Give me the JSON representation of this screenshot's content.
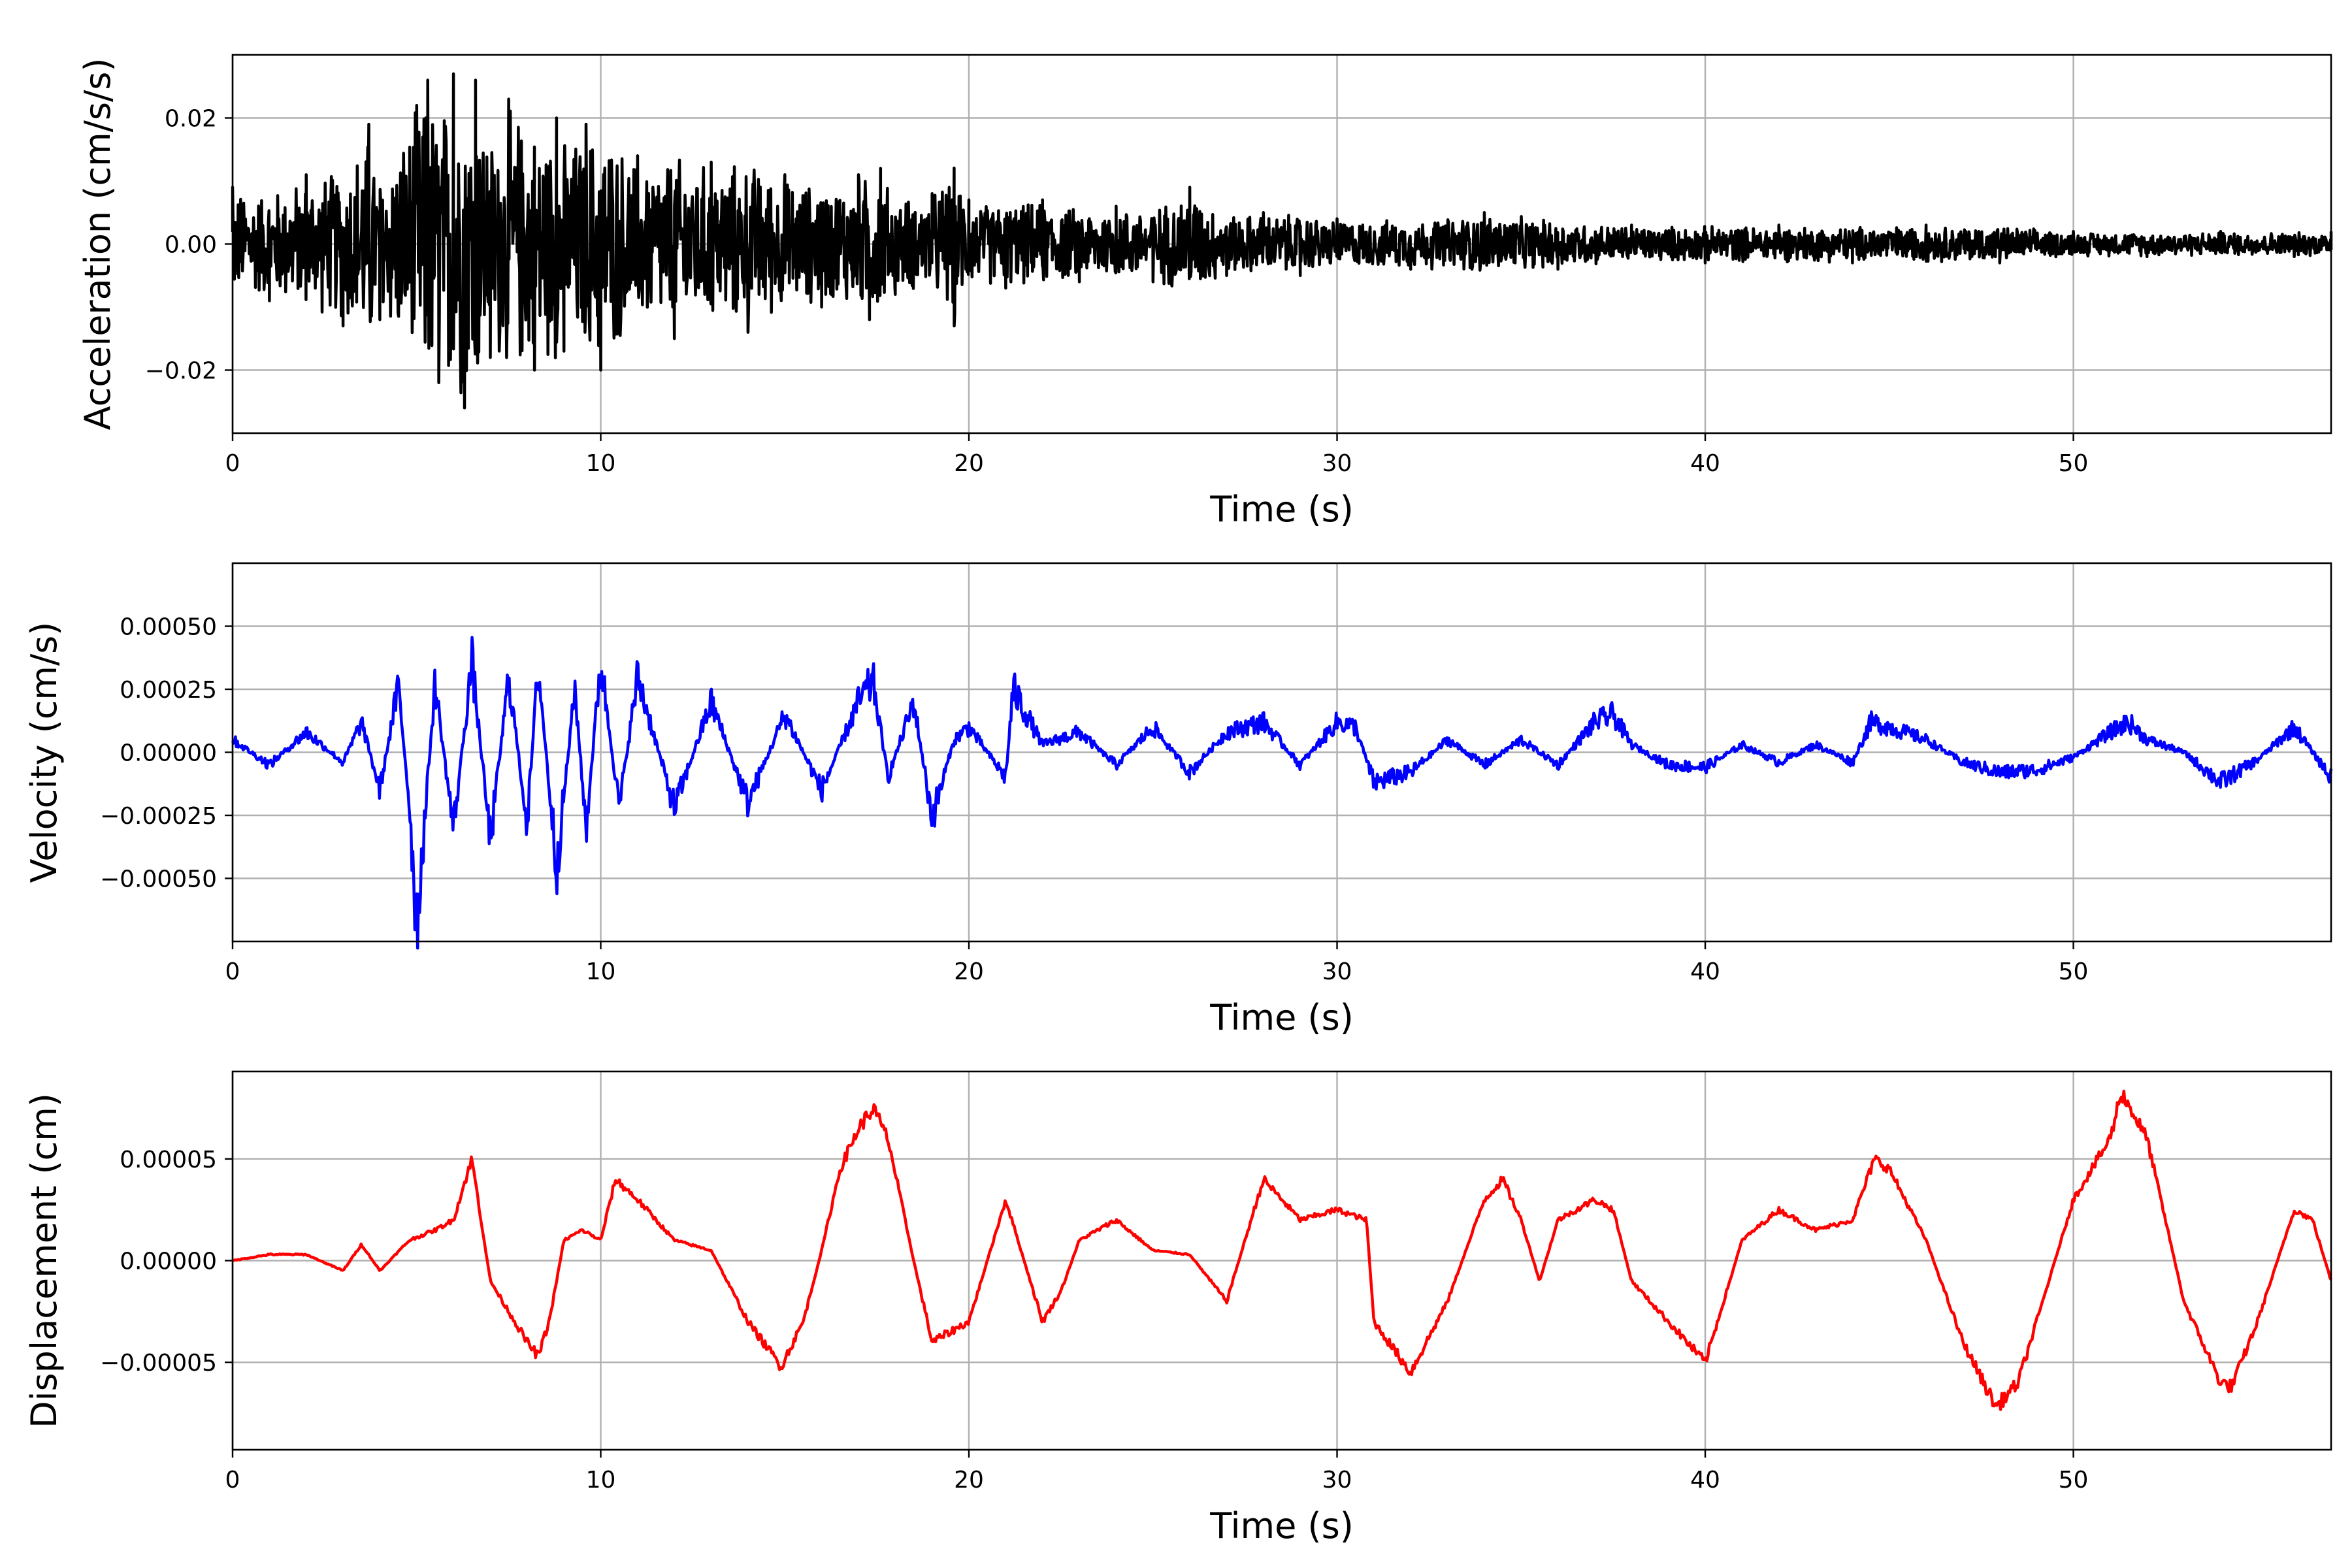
{
  "chart_data": [
    {
      "type": "line",
      "id": "acceleration",
      "xlabel": "Time (s)",
      "ylabel": "Acceleration (cm/s/s)",
      "xlim": [
        0,
        57
      ],
      "ylim": [
        -0.03,
        0.03
      ],
      "xticks": [
        0,
        10,
        20,
        30,
        40,
        50
      ],
      "xtick_labels": [
        "0",
        "10",
        "20",
        "30",
        "40",
        "50"
      ],
      "yticks": [
        -0.02,
        0.0,
        0.02
      ],
      "ytick_labels": [
        "−0.02",
        "0.00",
        "0.02"
      ],
      "grid": true,
      "color": "#000000",
      "series": [
        {
          "x": [
            0,
            1,
            2,
            3,
            3.7,
            4,
            5,
            5.3,
            5.6,
            6,
            6.3,
            6.6,
            7,
            7.5,
            8.2,
            8.8,
            9,
            9.6,
            10,
            11,
            12,
            13,
            14,
            15,
            16,
            17,
            17.3,
            17.6,
            18,
            19,
            19.6,
            20,
            21,
            22,
            23,
            24,
            25,
            26,
            27,
            28,
            29,
            30,
            32,
            34,
            36,
            38,
            40,
            42,
            44,
            46,
            48,
            50,
            52,
            54,
            56,
            57
          ],
          "y": [
            0.009,
            -0.009,
            0.011,
            -0.013,
            0.019,
            -0.012,
            0.022,
            0.026,
            -0.022,
            0.027,
            -0.026,
            0.026,
            -0.018,
            0.023,
            -0.02,
            0.02,
            -0.017,
            0.019,
            -0.02,
            0.014,
            -0.015,
            0.013,
            -0.014,
            0.011,
            -0.01,
            0.011,
            -0.012,
            0.012,
            -0.008,
            0.008,
            -0.013,
            0.007,
            -0.007,
            0.007,
            -0.006,
            0.006,
            -0.006,
            0.009,
            -0.005,
            0.005,
            -0.005,
            0.004,
            -0.004,
            0.005,
            -0.004,
            0.003,
            -0.003,
            0.003,
            -0.003,
            0.003,
            -0.003,
            0.002,
            -0.002,
            0.002,
            -0.002,
            0.002
          ]
        }
      ]
    },
    {
      "type": "line",
      "id": "velocity",
      "xlabel": "Time (s)",
      "ylabel": "Velocity (cm/s)",
      "xlim": [
        0,
        57
      ],
      "ylim": [
        -0.00075,
        0.00075
      ],
      "xticks": [
        0,
        10,
        20,
        30,
        40,
        50
      ],
      "xtick_labels": [
        "0",
        "10",
        "20",
        "30",
        "40",
        "50"
      ],
      "yticks": [
        -0.0005,
        -0.00025,
        0.0,
        0.00025,
        0.0005
      ],
      "ytick_labels": [
        "−0.00050",
        "−0.00025",
        "0.00000",
        "0.00025",
        "0.00050"
      ],
      "grid": true,
      "color": "#0000ff",
      "series": [
        {
          "x": [
            0,
            1,
            2,
            3,
            3.5,
            4,
            4.5,
            4.8,
            5,
            5.5,
            6,
            6.5,
            7,
            7.5,
            8,
            8.3,
            8.8,
            9.3,
            9.6,
            10,
            10.5,
            11,
            12,
            13,
            14,
            15,
            16,
            17,
            17.4,
            17.8,
            18.5,
            19,
            19.6,
            20,
            21,
            21.2,
            22,
            23,
            24,
            25,
            26,
            27,
            28,
            29,
            30,
            30.5,
            31,
            32,
            33,
            34,
            35,
            36,
            37,
            37.5,
            38,
            39,
            40,
            41,
            42,
            43,
            44,
            44.5,
            45,
            46,
            47,
            48,
            49,
            50,
            51,
            51.5,
            52,
            53,
            54,
            55,
            56,
            57
          ],
          "y": [
            5e-05,
            -5e-05,
            8e-05,
            -4e-05,
            0.00012,
            -0.00015,
            0.00026,
            -0.0002,
            -0.00068,
            0.00027,
            -0.0003,
            0.00036,
            -0.00035,
            0.0003,
            -0.00028,
            0.00034,
            -0.00045,
            0.00025,
            -0.0003,
            0.00036,
            -0.00022,
            0.0003,
            -0.00022,
            0.0002,
            -0.0002,
            0.00015,
            -0.00015,
            0.0002,
            0.00028,
            -0.0001,
            0.0002,
            -0.00026,
            5e-05,
            0.0001,
            -0.0001,
            0.00025,
            3e-05,
            8e-05,
            -5e-05,
            0.0001,
            -8e-05,
            8e-05,
            0.00012,
            -5e-05,
            0.00012,
            0.0001,
            -0.00012,
            -8e-05,
            5e-05,
            -5e-05,
            5e-05,
            -5e-05,
            0.00012,
            0.00015,
            3e-05,
            -5e-05,
            -6e-05,
            3e-05,
            -4e-05,
            3e-05,
            -4e-05,
            0.00012,
            0.0001,
            5e-05,
            -4e-05,
            -8e-05,
            -7e-05,
            -2e-05,
            8e-05,
            0.00012,
            5e-05,
            0.0,
            -0.00012,
            -3e-05,
            0.0001,
            -0.0001
          ]
        }
      ]
    },
    {
      "type": "line",
      "id": "displacement",
      "xlabel": "Time (s)",
      "ylabel": "Displacement (cm)",
      "xlim": [
        0,
        57
      ],
      "ylim": [
        -9.3e-05,
        9.3e-05
      ],
      "xticks": [
        0,
        10,
        20,
        30,
        40,
        50
      ],
      "xtick_labels": [
        "0",
        "10",
        "20",
        "30",
        "40",
        "50"
      ],
      "yticks": [
        -5e-05,
        0.0,
        5e-05
      ],
      "ytick_labels": [
        "−0.00005",
        "0.00000",
        "0.00005"
      ],
      "grid": true,
      "color": "#ff0000",
      "series": [
        {
          "x": [
            0,
            1,
            2,
            3,
            3.5,
            4,
            4.8,
            5.5,
            6,
            6.5,
            7,
            7.5,
            8,
            8.3,
            8.6,
            9,
            9.5,
            10,
            10.4,
            11,
            12,
            13,
            14,
            14.9,
            15.5,
            16,
            16.5,
            17,
            17.4,
            17.8,
            18.5,
            19,
            20,
            21,
            22,
            22.5,
            23,
            24,
            25,
            26,
            27,
            28,
            28.5,
            29,
            30,
            30.8,
            31,
            32,
            33,
            34,
            34.5,
            35,
            35.5,
            36,
            37,
            37.5,
            38,
            39,
            40,
            41,
            42,
            42.5,
            43,
            44,
            44.6,
            45,
            46,
            47,
            47.9,
            48.5,
            49,
            50,
            51,
            51.3,
            52,
            53,
            54,
            54.3,
            55,
            56,
            56.5,
            57
          ],
          "y": [
            0.0,
            3e-06,
            3e-06,
            -5e-06,
            8e-06,
            -5e-06,
            1e-05,
            1.5e-05,
            2e-05,
            5e-05,
            -1e-05,
            -2.5e-05,
            -4e-05,
            -4.7e-05,
            -3e-05,
            1e-05,
            1.5e-05,
            1e-05,
            4e-05,
            3e-05,
            1e-05,
            5e-06,
            -3e-05,
            -5.2e-05,
            -3e-05,
            5e-06,
            4.5e-05,
            6.5e-05,
            7.5e-05,
            6e-05,
            0.0,
            -4e-05,
            -3e-05,
            3e-05,
            -3e-05,
            -1.5e-05,
            1e-05,
            2e-05,
            5e-06,
            3e-06,
            -2e-05,
            4e-05,
            3e-05,
            2e-05,
            2.5e-05,
            2e-05,
            -3e-05,
            -5.5e-05,
            -2e-05,
            3e-05,
            4e-05,
            2e-05,
            -1e-05,
            2e-05,
            3e-05,
            2.5e-05,
            -1e-05,
            -3e-05,
            -5e-05,
            1e-05,
            2.5e-05,
            2e-05,
            1.5e-05,
            2e-05,
            5e-05,
            4.5e-05,
            1e-05,
            -4e-05,
            -7.2e-05,
            -6e-05,
            -3e-05,
            3e-05,
            6e-05,
            8.3e-05,
            6e-05,
            -2e-05,
            -6e-05,
            -6.2e-05,
            -3e-05,
            2.5e-05,
            2e-05,
            -1e-05
          ]
        }
      ]
    }
  ]
}
